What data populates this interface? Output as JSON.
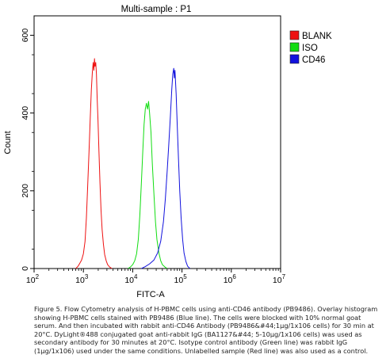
{
  "chart_data": {
    "type": "histogram-overlay",
    "title": "Multi-sample : P1",
    "xlabel": "FITC-A",
    "ylabel": "Count",
    "x_scale": "log",
    "xlim": [
      100,
      10000000
    ],
    "ylim": [
      0,
      650
    ],
    "x_ticks": [
      {
        "value": 100,
        "base": "10",
        "exp": "2"
      },
      {
        "value": 1000,
        "base": "10",
        "exp": "3"
      },
      {
        "value": 10000,
        "base": "10",
        "exp": "4"
      },
      {
        "value": 100000,
        "base": "10",
        "exp": "5"
      },
      {
        "value": 1000000,
        "base": "10",
        "exp": "6"
      },
      {
        "value": 10000000,
        "base": "10",
        "exp": "7"
      }
    ],
    "y_ticks": [
      {
        "value": 0,
        "label": "0"
      },
      {
        "value": 200,
        "label": "200"
      },
      {
        "value": 400,
        "label": "400"
      },
      {
        "value": 600,
        "label": "600"
      }
    ],
    "legend_position": "top-right",
    "series": [
      {
        "name": "BLANK",
        "color": "#ee1111",
        "points": [
          [
            700,
            0
          ],
          [
            780,
            6
          ],
          [
            850,
            14
          ],
          [
            920,
            22
          ],
          [
            1000,
            38
          ],
          [
            1080,
            70
          ],
          [
            1150,
            130
          ],
          [
            1220,
            210
          ],
          [
            1300,
            300
          ],
          [
            1380,
            390
          ],
          [
            1450,
            460
          ],
          [
            1520,
            505
          ],
          [
            1580,
            530
          ],
          [
            1630,
            510
          ],
          [
            1680,
            540
          ],
          [
            1720,
            520
          ],
          [
            1780,
            530
          ],
          [
            1840,
            500
          ],
          [
            1900,
            440
          ],
          [
            1980,
            380
          ],
          [
            2070,
            300
          ],
          [
            2170,
            220
          ],
          [
            2280,
            150
          ],
          [
            2400,
            100
          ],
          [
            2550,
            62
          ],
          [
            2700,
            36
          ],
          [
            2900,
            20
          ],
          [
            3100,
            10
          ],
          [
            3400,
            4
          ],
          [
            3800,
            0
          ]
        ]
      },
      {
        "name": "ISO",
        "color": "#11dd11",
        "points": [
          [
            8000,
            0
          ],
          [
            9000,
            4
          ],
          [
            10000,
            10
          ],
          [
            11000,
            20
          ],
          [
            12000,
            38
          ],
          [
            13000,
            75
          ],
          [
            14000,
            140
          ],
          [
            15000,
            220
          ],
          [
            16000,
            300
          ],
          [
            17000,
            370
          ],
          [
            18000,
            410
          ],
          [
            19000,
            425
          ],
          [
            20000,
            410
          ],
          [
            21000,
            430
          ],
          [
            22000,
            400
          ],
          [
            23500,
            350
          ],
          [
            25000,
            270
          ],
          [
            27000,
            190
          ],
          [
            29000,
            120
          ],
          [
            31000,
            75
          ],
          [
            34000,
            40
          ],
          [
            37000,
            20
          ],
          [
            40000,
            10
          ],
          [
            45000,
            4
          ],
          [
            50000,
            0
          ]
        ]
      },
      {
        "name": "CD46",
        "color": "#1111dd",
        "points": [
          [
            15000,
            0
          ],
          [
            18000,
            5
          ],
          [
            22000,
            12
          ],
          [
            27000,
            22
          ],
          [
            32000,
            40
          ],
          [
            37000,
            70
          ],
          [
            42000,
            120
          ],
          [
            46000,
            180
          ],
          [
            50000,
            250
          ],
          [
            54000,
            320
          ],
          [
            58000,
            390
          ],
          [
            62000,
            460
          ],
          [
            65000,
            500
          ],
          [
            68000,
            515
          ],
          [
            70000,
            490
          ],
          [
            72000,
            510
          ],
          [
            76000,
            450
          ],
          [
            80000,
            370
          ],
          [
            85000,
            280
          ],
          [
            90000,
            200
          ],
          [
            96000,
            130
          ],
          [
            103000,
            75
          ],
          [
            110000,
            40
          ],
          [
            120000,
            18
          ],
          [
            130000,
            6
          ],
          [
            145000,
            0
          ]
        ]
      }
    ]
  },
  "caption": "Figure 5. Flow Cytometry analysis of H-PBMC cells using anti-CD46 antibody (PB9486). Overlay histogram showing H-PBMC cells stained with PB9486 (Blue line). The cells were blocked with 10% normal goat serum. And then incubated with rabbit anti-CD46 Antibody (PB9486&#44;1μg/1x106 cells) for 30 min at 20°C. DyLight®488 conjugated goat anti-rabbit IgG (BA1127&#44; 5-10μg/1x106 cells) was used as secondary antibody for 30 minutes at 20°C. Isotype control antibody (Green line) was rabbit IgG (1μg/1x106) used under the same conditions. Unlabelled sample (Red line) was also used as a control."
}
